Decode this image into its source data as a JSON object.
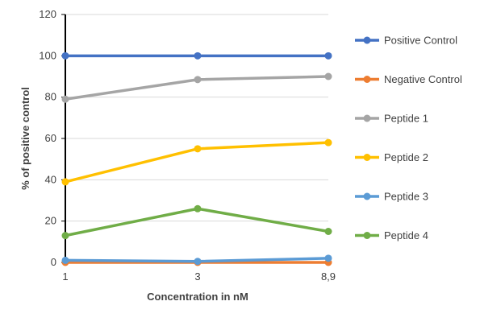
{
  "chart_data": {
    "type": "line",
    "xlabel": "Concentration in nM",
    "ylabel": "% of positive control",
    "categories": [
      "1",
      "3",
      "8,9"
    ],
    "ylim": [
      0,
      120
    ],
    "yticks": [
      0,
      20,
      40,
      60,
      80,
      100,
      120
    ],
    "grid": true,
    "legend_position": "right",
    "series": [
      {
        "name": "Positive Control",
        "color": "#4472C4",
        "values": [
          100,
          100,
          100
        ]
      },
      {
        "name": "Negative Control",
        "color": "#ED7D31",
        "values": [
          0,
          0,
          0
        ]
      },
      {
        "name": "Peptide 1",
        "color": "#A5A5A5",
        "values": [
          79,
          88.5,
          90
        ]
      },
      {
        "name": "Peptide 2",
        "color": "#FFC000",
        "values": [
          39,
          55,
          58
        ]
      },
      {
        "name": "Peptide 3",
        "color": "#5B9BD5",
        "values": [
          1,
          0.5,
          2
        ]
      },
      {
        "name": "Peptide 4",
        "color": "#70AD47",
        "values": [
          13,
          26,
          15
        ]
      }
    ]
  }
}
